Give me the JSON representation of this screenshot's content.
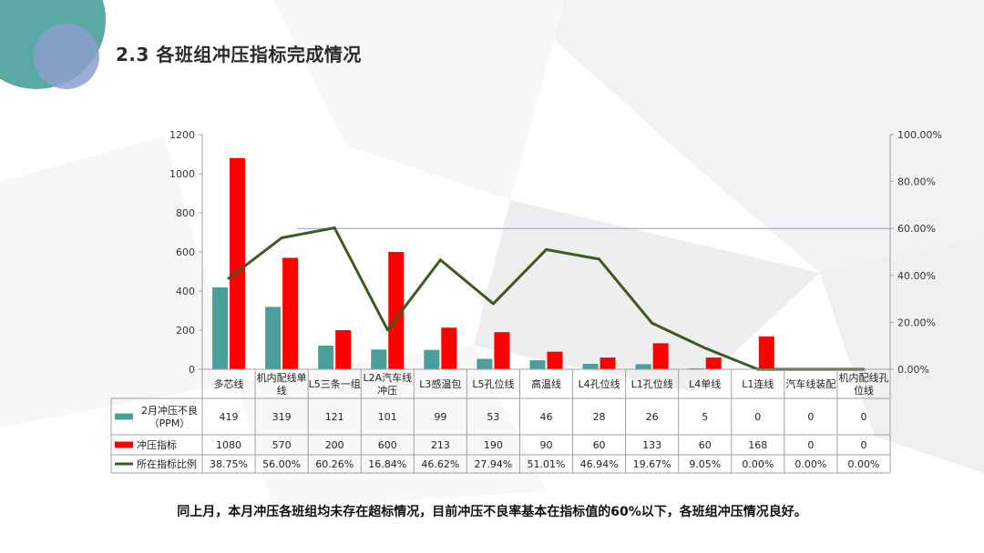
{
  "page": {
    "title": "2.3 各班组冲压指标完成情况",
    "footer": "同上月，本月冲压各班组均未存在超标情况，目前冲压不良率基本在指标值的60%以下，各班组冲压情况良好。"
  },
  "colors": {
    "teal": "#4a9f9b",
    "red": "#ff0000",
    "line": "#3d5a22",
    "refline": "#7fa6cf",
    "axis": "#a0a0a0"
  },
  "chart_data": {
    "type": "bar",
    "categories": [
      [
        "多芯线"
      ],
      [
        "机内配线单",
        "线"
      ],
      [
        "L5三条一组"
      ],
      [
        "L2A汽车线",
        "冲压"
      ],
      [
        "L3感温包"
      ],
      [
        "L5孔位线"
      ],
      [
        "高温线"
      ],
      [
        "L4孔位线"
      ],
      [
        "L1孔位线"
      ],
      [
        "L4单线"
      ],
      [
        "L1连线"
      ],
      [
        "汽车线装配"
      ],
      [
        "机内配线孔",
        "位线"
      ]
    ],
    "series": [
      {
        "name": [
          "2月冲压不良",
          "（PPM）"
        ],
        "type": "bar",
        "axis": "left",
        "color": "#4a9f9b",
        "values": [
          419,
          319,
          121,
          101,
          99,
          53,
          46,
          28,
          26,
          5,
          0,
          0,
          0
        ],
        "labels": [
          "419",
          "319",
          "121",
          "101",
          "99",
          "53",
          "46",
          "28",
          "26",
          "5",
          "0",
          "0",
          "0"
        ]
      },
      {
        "name": [
          "冲压指标"
        ],
        "type": "bar",
        "axis": "left",
        "color": "#ff0000",
        "values": [
          1080,
          570,
          200,
          600,
          213,
          190,
          90,
          60,
          133,
          60,
          168,
          0,
          0
        ],
        "labels": [
          "1080",
          "570",
          "200",
          "600",
          "213",
          "190",
          "90",
          "60",
          "133",
          "60",
          "168",
          "0",
          "0"
        ]
      },
      {
        "name": [
          "所在指标比例"
        ],
        "type": "line",
        "axis": "right",
        "color": "#3d5a22",
        "values": [
          38.75,
          56.0,
          60.26,
          16.84,
          46.62,
          27.94,
          51.01,
          46.94,
          19.67,
          9.05,
          0.0,
          0.0,
          0.0
        ],
        "labels": [
          "38.75%",
          "56.00%",
          "60.26%",
          "16.84%",
          "46.62%",
          "27.94%",
          "51.01%",
          "46.94%",
          "19.67%",
          "9.05%",
          "0.00%",
          "0.00%",
          "0.00%"
        ]
      }
    ],
    "y_left": {
      "ylim": [
        0,
        1200
      ],
      "ticks": [
        "0",
        "200",
        "400",
        "600",
        "800",
        "1000",
        "1200"
      ]
    },
    "y_right": {
      "ylim": [
        0,
        100
      ],
      "ticks": [
        "0.00%",
        "20.00%",
        "40.00%",
        "60.00%",
        "80.00%",
        "100.00%"
      ]
    },
    "reference_line": {
      "value": 60,
      "axis": "right"
    },
    "grid": false,
    "legend": "data-table"
  }
}
